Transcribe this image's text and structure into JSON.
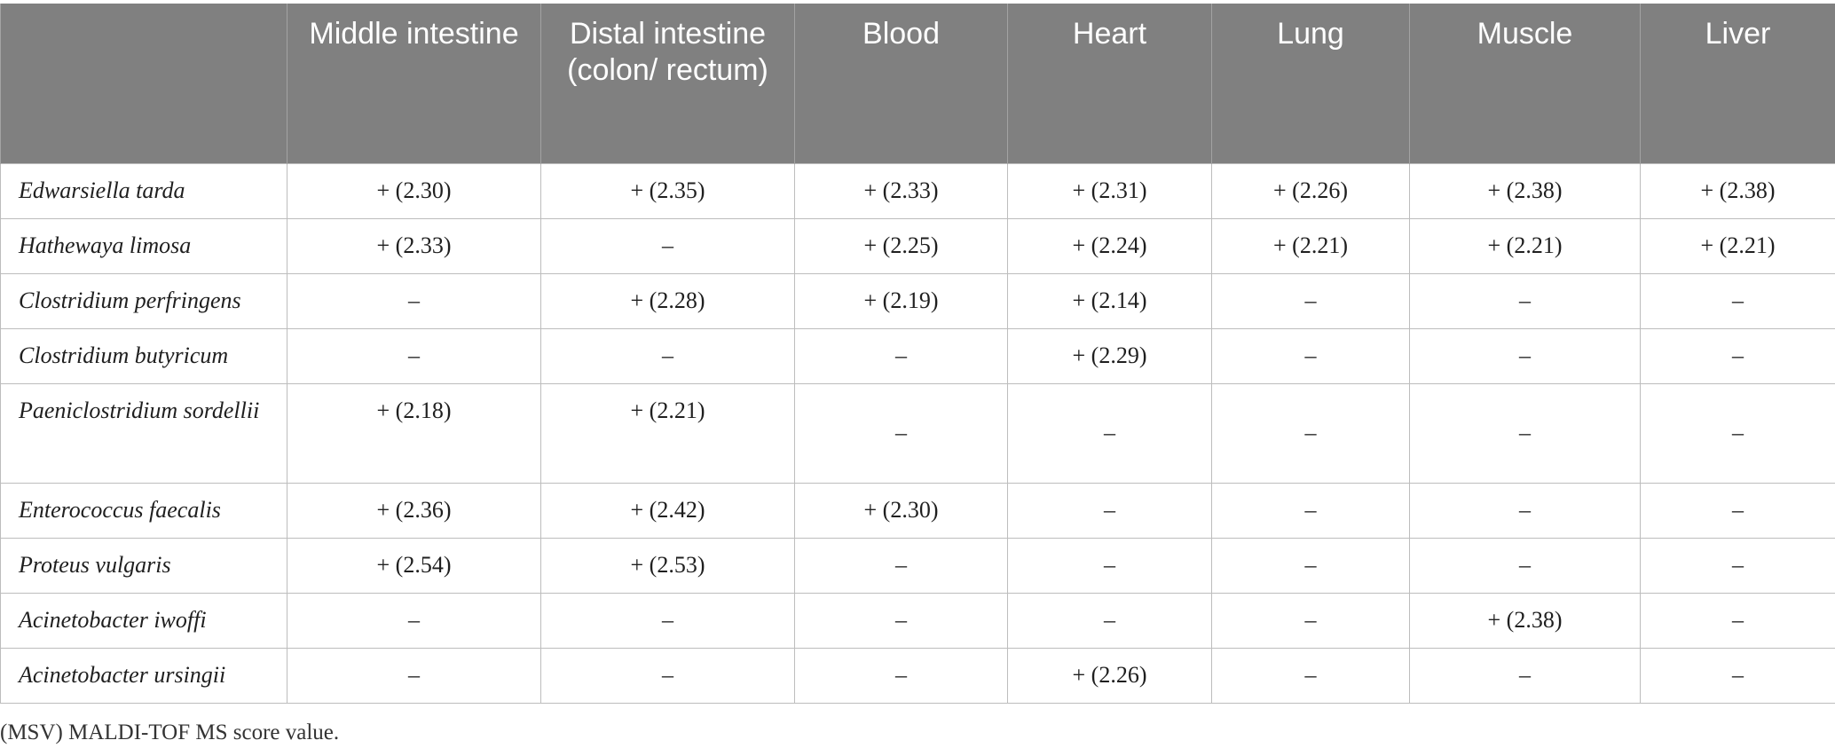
{
  "table": {
    "columns": [
      "",
      "Middle intestine",
      "Distal intestine (colon/ rectum)",
      "Blood",
      "Heart",
      "Lung",
      "Muscle",
      "Liver"
    ],
    "rows": [
      {
        "species": "Edwarsiella tarda",
        "values": [
          "+ (2.30)",
          "+ (2.35)",
          "+ (2.33)",
          "+ (2.31)",
          "+ (2.26)",
          "+ (2.38)",
          "+ (2.38)"
        ]
      },
      {
        "species": "Hathewaya limosa",
        "values": [
          "+ (2.33)",
          "–",
          "+ (2.25)",
          "+ (2.24)",
          "+ (2.21)",
          "+ (2.21)",
          "+ (2.21)"
        ]
      },
      {
        "species": "Clostridium perfringens",
        "values": [
          "–",
          "+ (2.28)",
          "+ (2.19)",
          "+ (2.14)",
          "–",
          "–",
          "–"
        ]
      },
      {
        "species": "Clostridium butyricum",
        "values": [
          "–",
          "–",
          "–",
          "+ (2.29)",
          "–",
          "–",
          "–"
        ]
      },
      {
        "species": "Paeniclostridium sordellii",
        "values": [
          "+ (2.18)",
          "+ (2.21)",
          "–",
          "–",
          "–",
          "–",
          "–"
        ]
      },
      {
        "species": "Enterococcus faecalis",
        "values": [
          "+ (2.36)",
          "+ (2.42)",
          "+ (2.30)",
          "–",
          "–",
          "–",
          "–"
        ]
      },
      {
        "species": "Proteus vulgaris",
        "values": [
          "+ (2.54)",
          "+ (2.53)",
          "–",
          "–",
          "–",
          "–",
          "–"
        ]
      },
      {
        "species": "Acinetobacter iwoffi",
        "values": [
          "–",
          "–",
          "–",
          "–",
          "–",
          "+ (2.38)",
          "–"
        ]
      },
      {
        "species": "Acinetobacter ursingii",
        "values": [
          "–",
          "–",
          "–",
          "+ (2.26)",
          "–",
          "–",
          "–"
        ]
      }
    ]
  },
  "footnote": "(MSV) MALDI-TOF MS score value."
}
